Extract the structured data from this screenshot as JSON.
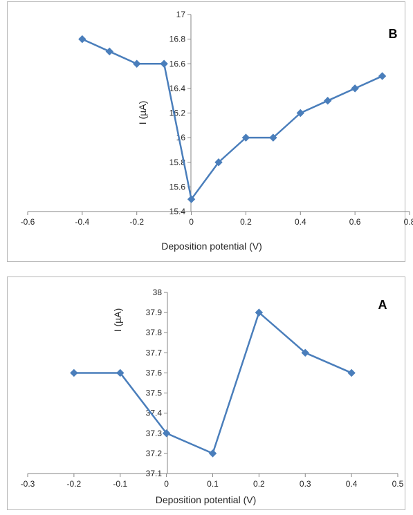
{
  "chart_data": [
    {
      "type": "line",
      "panel_label": "B",
      "xlabel": "Deposition potential (V)",
      "ylabel": "I (µA)",
      "xlim": [
        -0.6,
        0.8
      ],
      "ylim": [
        15.4,
        17
      ],
      "x_ticks": [
        "-0.6",
        "-0.4",
        "-0.2",
        "0",
        "0.2",
        "0.4",
        "0.6",
        "0.8"
      ],
      "y_ticks": [
        "15.4",
        "15.6",
        "15.8",
        "16",
        "16.2",
        "16.4",
        "16.6",
        "16.8",
        "17"
      ],
      "grid": false,
      "color": "#4a7ebb",
      "series": [
        {
          "x": [
            -0.4,
            -0.3,
            -0.2,
            -0.1,
            0,
            0.1,
            0.2,
            0.3,
            0.4,
            0.5,
            0.6,
            0.7
          ],
          "y": [
            16.8,
            16.7,
            16.6,
            16.6,
            15.5,
            15.8,
            16.0,
            16.0,
            16.2,
            16.3,
            16.4,
            16.5
          ]
        }
      ]
    },
    {
      "type": "line",
      "panel_label": "A",
      "xlabel": "Deposition potential (V)",
      "ylabel": "I (µA)",
      "xlim": [
        -0.3,
        0.5
      ],
      "ylim": [
        37.1,
        38
      ],
      "x_ticks": [
        "-0.3",
        "-0.2",
        "-0.1",
        "0",
        "0.1",
        "0.2",
        "0.3",
        "0.4",
        "0.5"
      ],
      "y_ticks": [
        "37.1",
        "37.2",
        "37.3",
        "37.4",
        "37.5",
        "37.6",
        "37.7",
        "37.8",
        "37.9",
        "38"
      ],
      "grid": false,
      "color": "#4a7ebb",
      "series": [
        {
          "x": [
            -0.2,
            -0.1,
            0,
            0.1,
            0.2,
            0.3,
            0.4
          ],
          "y": [
            37.6,
            37.6,
            37.3,
            37.2,
            37.9,
            37.7,
            37.6
          ]
        }
      ]
    }
  ]
}
